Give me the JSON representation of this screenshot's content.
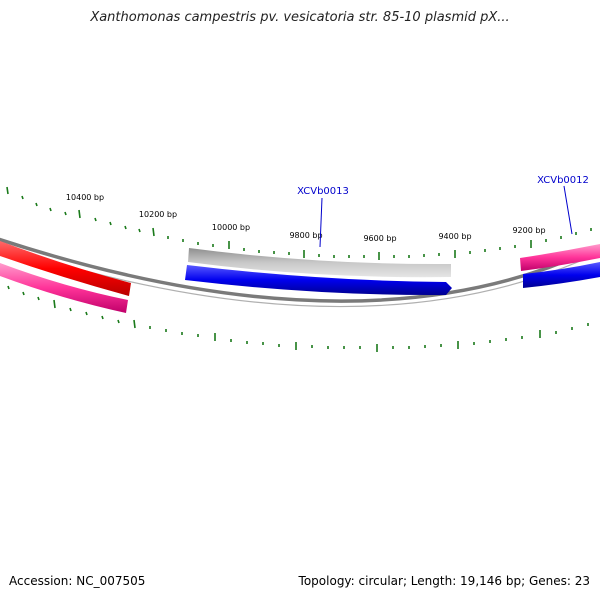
{
  "header": {
    "title": "Xanthomonas campestris pv. vesicatoria str. 85-10 plasmid pX..."
  },
  "footer": {
    "accession": "Accession: NC_007505",
    "summary": "Topology: circular; Length: 19,146 bp; Genes: 23"
  },
  "colors": {
    "backbone": "#808080",
    "ticks": "#1a7a1a",
    "gene_red": "#ff0000",
    "gene_pink": "#ff3399",
    "gene_blue": "#0000ee",
    "gene_gray": "#b0b0b0",
    "label": "#0000cc"
  },
  "map": {
    "tick_labels": [
      "10400 bp",
      "10200 bp",
      "10000 bp",
      "9800 bp",
      "9600 bp",
      "9400 bp",
      "9200 bp"
    ],
    "features": [
      {
        "name": "red-feature",
        "color": "#ff0000"
      },
      {
        "name": "pink-feature-left",
        "color": "#ff3399"
      },
      {
        "name": "gray-feature",
        "color": "#b0b0b0"
      },
      {
        "name": "blue-feature-center",
        "color": "#0000ee"
      },
      {
        "name": "pink-feature-right",
        "color": "#ff3399"
      },
      {
        "name": "blue-feature-right",
        "color": "#0000ee"
      }
    ],
    "gene_labels": [
      "XCVb0013",
      "XCVb0012"
    ]
  }
}
